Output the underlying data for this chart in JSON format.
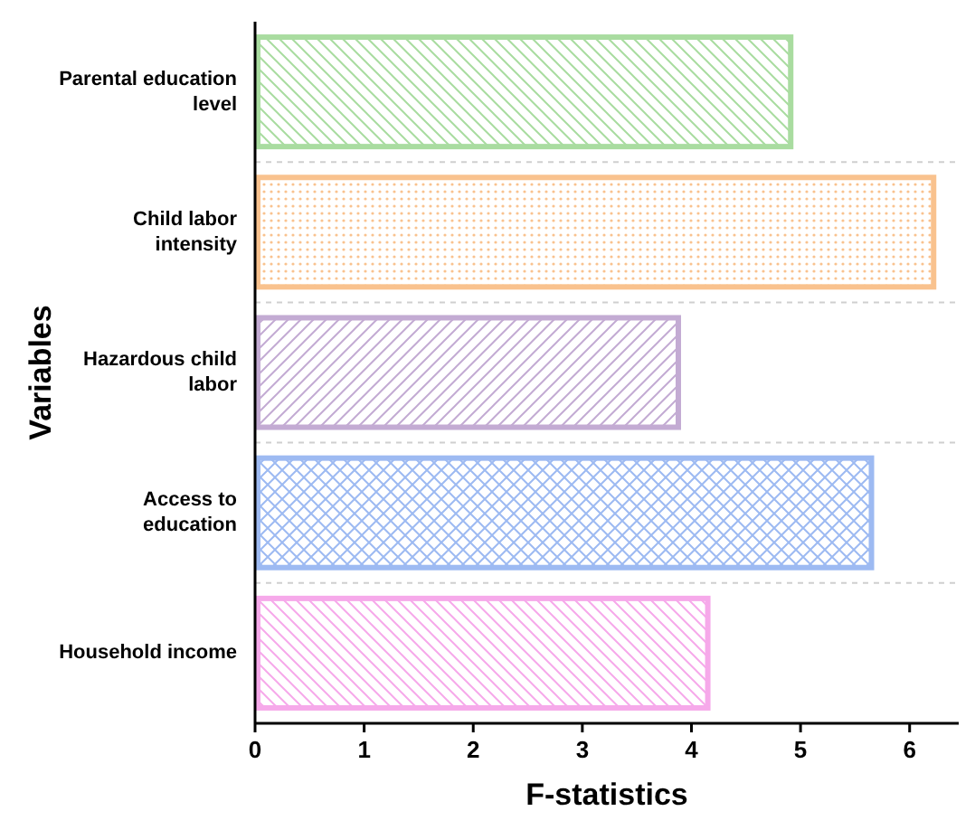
{
  "chart_data": {
    "type": "bar",
    "orientation": "horizontal",
    "xlabel": "F-statistics",
    "ylabel": "Variables",
    "categories": [
      "Parental education level",
      "Child labor intensity",
      "Hazardous child labor",
      "Access to education",
      "Household income"
    ],
    "values": [
      4.91,
      6.22,
      3.88,
      5.65,
      4.15
    ],
    "colors": [
      "#a9dca0",
      "#f9c28e",
      "#c3abd3",
      "#9dbaf2",
      "#f6a9ea"
    ],
    "xlim": [
      0,
      6.45
    ],
    "xticks": [
      0,
      1,
      2,
      3,
      4,
      5,
      6
    ],
    "grid": "y"
  }
}
